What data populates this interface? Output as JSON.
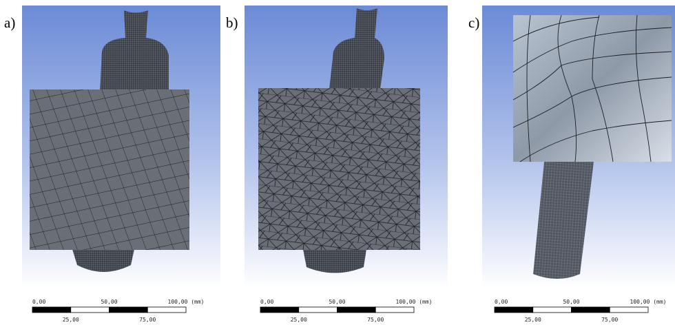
{
  "panels": [
    {
      "label": "a)",
      "scale_bar": {
        "top": [
          "0,00",
          "50,00",
          "100,00 (mm)"
        ],
        "bottom": [
          "25,00",
          "75,00"
        ]
      }
    },
    {
      "label": "b)",
      "scale_bar": {
        "top": [
          "0,00",
          "50,00",
          "100,00 (mm)"
        ],
        "bottom": [
          "25,00",
          "75,00"
        ]
      }
    },
    {
      "label": "c)",
      "scale_bar": {
        "top": [
          "0,00",
          "50,00",
          "100,00 (mm)"
        ],
        "bottom": [
          "25,00",
          "75,00"
        ]
      }
    }
  ]
}
